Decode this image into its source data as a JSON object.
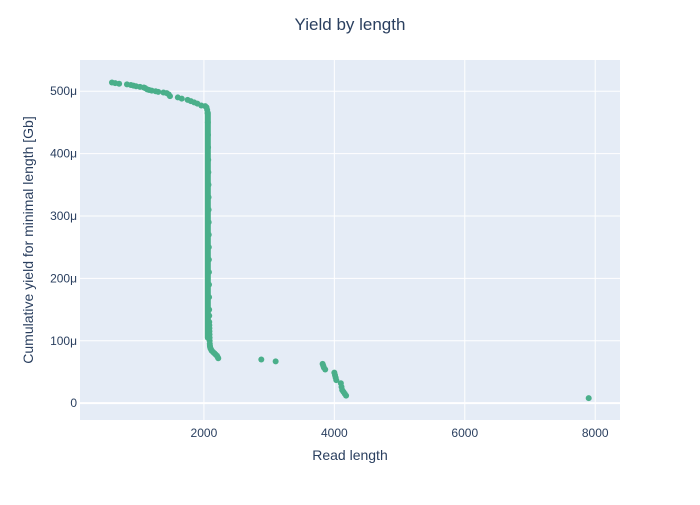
{
  "chart_data": {
    "type": "scatter",
    "title": "Yield by length",
    "xlabel": "Read length",
    "ylabel": "Cumulative yield for minimal length [Gb]",
    "xlim": [
      100,
      8380
    ],
    "ylim": [
      -2.7e-05,
      0.00055
    ],
    "x_ticks": [
      {
        "value": 2000,
        "label": "2000"
      },
      {
        "value": 4000,
        "label": "4000"
      },
      {
        "value": 6000,
        "label": "6000"
      },
      {
        "value": 8000,
        "label": "8000"
      }
    ],
    "y_ticks": [
      {
        "value": 0,
        "label": "0"
      },
      {
        "value": 0.0001,
        "label": "100μ"
      },
      {
        "value": 0.0002,
        "label": "200μ"
      },
      {
        "value": 0.0003,
        "label": "300μ"
      },
      {
        "value": 0.0004,
        "label": "400μ"
      },
      {
        "value": 0.0005,
        "label": "500μ"
      }
    ],
    "grid": true,
    "colors": {
      "marker": "#4aaf8a",
      "plot_bg": "#e5ecf6",
      "grid": "#ffffff",
      "text": "#2a3f5f"
    },
    "series": [
      {
        "x": [
          590,
          640,
          700,
          820,
          880,
          920,
          960,
          1020,
          1080,
          1100,
          1130,
          1160,
          1200,
          1260,
          1300,
          1380,
          1430,
          1460,
          1480,
          1600,
          1660,
          1750,
          1800,
          1850,
          1900,
          1960,
          2020,
          2040,
          2050,
          2055,
          2060,
          2062,
          2064,
          2066,
          2068,
          2070,
          2071,
          2072,
          2073,
          2074,
          2075,
          2076,
          2077,
          2078,
          2079,
          2080,
          2081,
          2082,
          2083,
          2084,
          2085,
          2086,
          2087,
          2088,
          2090,
          2092,
          2095,
          2100,
          2110,
          2120,
          2140,
          2160,
          2180,
          2200,
          2210,
          2220,
          2880,
          3100,
          3820,
          3830,
          3840,
          3860,
          4000,
          4010,
          4020,
          4030,
          4100,
          4110,
          4120,
          4140,
          4160,
          4180,
          7900
        ],
        "y": [
          0.000514,
          0.000513,
          0.000512,
          0.000511,
          0.00051,
          0.000509,
          0.000508,
          0.000507,
          0.000506,
          0.000505,
          0.000503,
          0.000502,
          0.000501,
          0.0005,
          0.000499,
          0.000498,
          0.000497,
          0.000495,
          0.000492,
          0.00049,
          0.000488,
          0.000486,
          0.000484,
          0.000482,
          0.00048,
          0.000477,
          0.000476,
          0.000474,
          0.00047,
          0.000465,
          0.00045,
          0.00043,
          0.00041,
          0.00039,
          0.00037,
          0.00035,
          0.00033,
          0.00031,
          0.00029,
          0.00027,
          0.00025,
          0.00023,
          0.00021,
          0.00019,
          0.00017,
          0.00015,
          0.00014,
          0.00013,
          0.000125,
          0.00012,
          0.000115,
          0.00011,
          0.000105,
          0.0001,
          9.5e-05,
          9.2e-05,
          9e-05,
          8.8e-05,
          8.6e-05,
          8.4e-05,
          8.2e-05,
          8e-05,
          7.8e-05,
          7.6e-05,
          7.4e-05,
          7.2e-05,
          7e-05,
          6.7e-05,
          6.3e-05,
          6e-05,
          5.7e-05,
          5.4e-05,
          4.9e-05,
          4.5e-05,
          4.1e-05,
          3.7e-05,
          3.2e-05,
          2.6e-05,
          2.1e-05,
          1.8e-05,
          1.5e-05,
          1.2e-05,
          8e-06
        ]
      }
    ]
  }
}
